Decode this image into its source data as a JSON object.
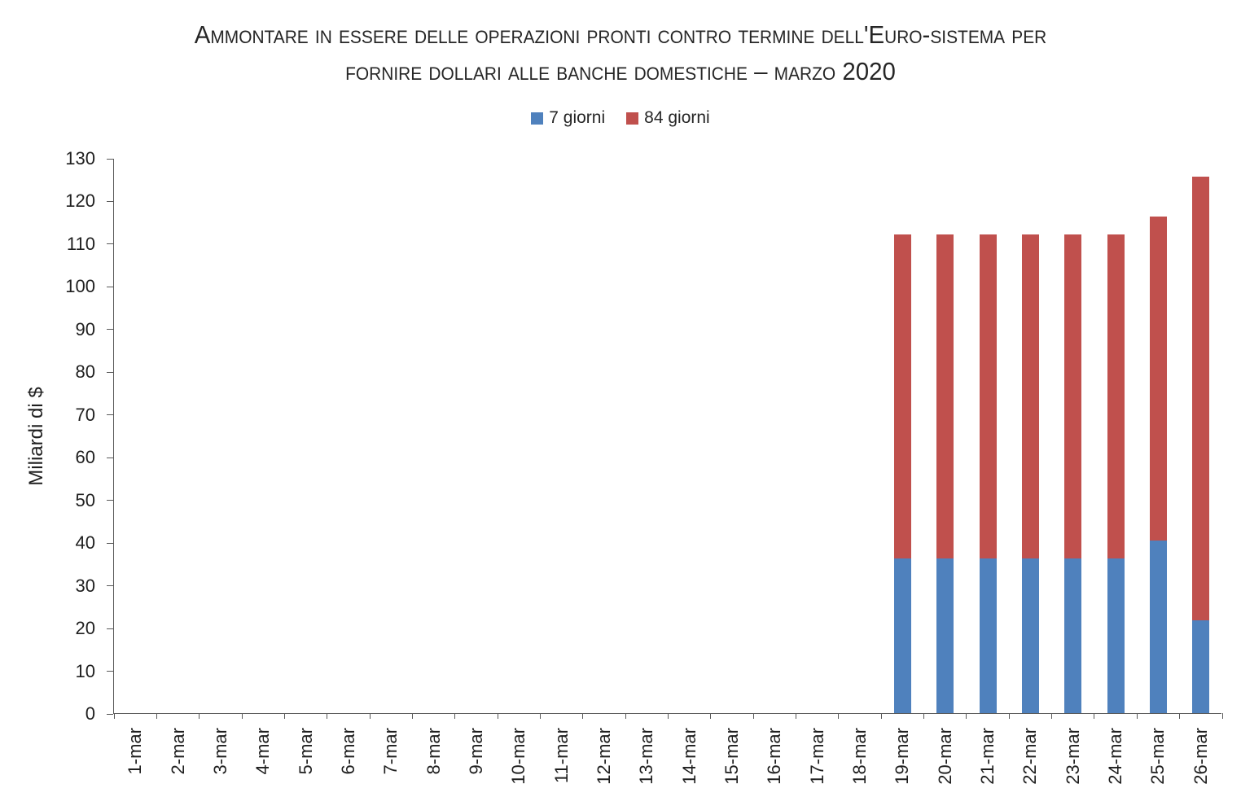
{
  "title": {
    "line1": "Ammontare in essere delle operazioni pronti contro termine dell'Euro-sistema per",
    "line2": "fornire dollari alle banche domestiche – marzo 2020"
  },
  "legend": [
    {
      "label": "7 giorni",
      "color": "#4F81BD"
    },
    {
      "label": "84 giorni",
      "color": "#C0504D"
    }
  ],
  "colors": {
    "series_blue": "#4F81BD",
    "series_red": "#C0504D",
    "axis_line": "#595959",
    "text": "#262626"
  },
  "chart_data": {
    "type": "bar",
    "stacked": true,
    "title": "Ammontare in essere delle operazioni pronti contro termine dell'Euro-sistema per fornire dollari alle banche domestiche – marzo 2020",
    "xlabel": "",
    "ylabel": "Miliardi di $",
    "ylim": [
      0,
      130
    ],
    "ytick_step": 10,
    "grid": false,
    "legend_position": "top",
    "categories": [
      "1-mar",
      "2-mar",
      "3-mar",
      "4-mar",
      "5-mar",
      "6-mar",
      "7-mar",
      "8-mar",
      "9-mar",
      "10-mar",
      "11-mar",
      "12-mar",
      "13-mar",
      "14-mar",
      "15-mar",
      "16-mar",
      "17-mar",
      "18-mar",
      "19-mar",
      "20-mar",
      "21-mar",
      "22-mar",
      "23-mar",
      "24-mar",
      "25-mar",
      "26-mar"
    ],
    "series": [
      {
        "name": "7 giorni",
        "color": "#4F81BD",
        "values": [
          0,
          0,
          0,
          0,
          0,
          0,
          0,
          0,
          0,
          0,
          0,
          0,
          0,
          0,
          0,
          0,
          0,
          0,
          36.3,
          36.3,
          36.3,
          36.3,
          36.3,
          36.3,
          40.4,
          21.7
        ]
      },
      {
        "name": "84 giorni",
        "color": "#C0504D",
        "values": [
          0,
          0,
          0,
          0,
          0,
          0,
          0,
          0,
          0,
          0,
          0,
          0,
          0,
          0,
          0,
          0,
          0,
          0,
          75.8,
          75.8,
          75.8,
          75.8,
          75.8,
          75.8,
          75.8,
          103.9
        ]
      }
    ]
  }
}
